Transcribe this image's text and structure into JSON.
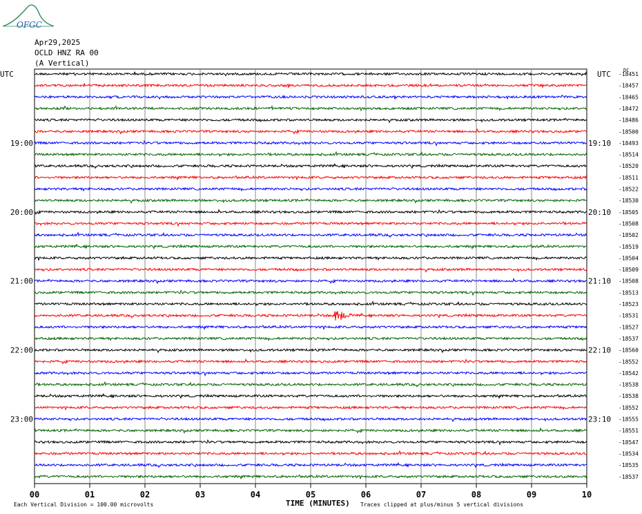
{
  "header": {
    "logo_text": "OFGC",
    "date": "Apr29,2025",
    "station": "OCLD HNZ RA 00",
    "component": "(A Vertical)"
  },
  "chart_data": {
    "type": "line",
    "title": "",
    "xlabel": "TIME (MINUTES)",
    "x_ticks": [
      "00",
      "01",
      "02",
      "03",
      "04",
      "05",
      "06",
      "07",
      "08",
      "09",
      "10"
    ],
    "xlim": [
      0,
      10
    ],
    "left_axis_label": "UTC",
    "right_axis_label": "UTC",
    "left_time_labels": [
      {
        "row": 6,
        "label": "19:00"
      },
      {
        "row": 12,
        "label": "20:00"
      },
      {
        "row": 18,
        "label": "21:00"
      },
      {
        "row": 24,
        "label": "22:00"
      },
      {
        "row": 30,
        "label": "23:00"
      }
    ],
    "right_time_labels": [
      {
        "row": 6,
        "label": "19:10"
      },
      {
        "row": 12,
        "label": "20:10"
      },
      {
        "row": 18,
        "label": "21:10"
      },
      {
        "row": 24,
        "label": "22:10"
      },
      {
        "row": 30,
        "label": "23:10"
      }
    ],
    "right_unit": "DC",
    "trace_colors": [
      "#000000",
      "#ff0000",
      "#0000ff",
      "#006400"
    ],
    "dc_offsets": [
      -18451,
      -18457,
      -18465,
      -18472,
      -18486,
      -18500,
      -18493,
      -18514,
      -18520,
      -18511,
      -18522,
      -18530,
      -18505,
      -18508,
      -18502,
      -18519,
      -18504,
      -18509,
      -18508,
      -18513,
      -18523,
      -18531,
      -18527,
      -18537,
      -18560,
      -18552,
      -18542,
      -18538,
      -18538,
      -18552,
      -18555,
      -18551,
      -18547,
      -18534,
      -18535,
      -18537
    ],
    "events": [
      {
        "row": 21,
        "minute": 5.5,
        "color": "#ff0000"
      }
    ],
    "grid": true
  },
  "footer": {
    "scale_note": "Each Vertical Division =  100.00 microvolts",
    "clip_note": "Traces clipped at plus/minus 5 vertical divisions"
  }
}
